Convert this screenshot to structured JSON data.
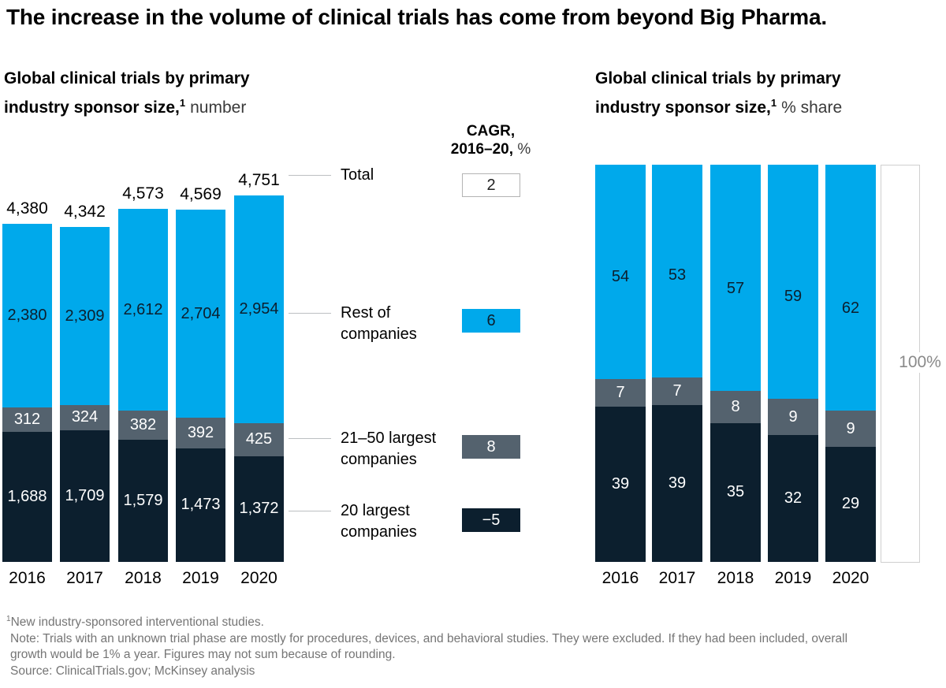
{
  "title": "The increase in the volume of clinical trials has come from beyond Big Pharma.",
  "left_chart": {
    "heading_bold_line1": "Global clinical trials by primary",
    "heading_bold_line2": "industry sponsor size,",
    "heading_sup": "1",
    "heading_unit": "number"
  },
  "right_chart": {
    "heading_bold_line1": "Global clinical trials by primary",
    "heading_bold_line2": "industry sponsor size,",
    "heading_sup": "1",
    "heading_unit": "% share",
    "axis_max_label": "100%"
  },
  "cagr": {
    "header_line1": "CAGR,",
    "header_line2_bold": "2016–20,",
    "header_line2_unit": "%",
    "rows": [
      {
        "id": "total",
        "label_line1": "Total",
        "label_line2": "",
        "value": "2",
        "box_style": "outline"
      },
      {
        "id": "rest-of-companies",
        "label_line1": "Rest of",
        "label_line2": "companies",
        "value": "6",
        "box_style": "blue"
      },
      {
        "id": "21-50-largest-companies",
        "label_line1": "21–50 largest",
        "label_line2": "companies",
        "value": "8",
        "box_style": "gray"
      },
      {
        "id": "20-largest-companies",
        "label_line1": "20 largest",
        "label_line2": "companies",
        "value": "−5",
        "box_style": "navy"
      }
    ]
  },
  "chart_data": [
    {
      "type": "bar",
      "stacked": true,
      "title": "Global clinical trials by primary industry sponsor size, number",
      "categories": [
        "2016",
        "2017",
        "2018",
        "2019",
        "2020"
      ],
      "series": [
        {
          "name": "Rest of companies",
          "color": "blue",
          "values": [
            2380,
            2309,
            2612,
            2704,
            2954
          ],
          "labels": [
            "2,380",
            "2,309",
            "2,612",
            "2,704",
            "2,954"
          ]
        },
        {
          "name": "21–50 largest companies",
          "color": "gray",
          "values": [
            312,
            324,
            382,
            392,
            425
          ],
          "labels": [
            "312",
            "324",
            "382",
            "392",
            "425"
          ]
        },
        {
          "name": "20 largest companies",
          "color": "navy",
          "values": [
            1688,
            1709,
            1579,
            1473,
            1372
          ],
          "labels": [
            "1,688",
            "1,709",
            "1,579",
            "1,473",
            "1,372"
          ]
        }
      ],
      "totals": [
        4380,
        4342,
        4573,
        4569,
        4751
      ],
      "total_labels": [
        "4,380",
        "4,342",
        "4,573",
        "4,569",
        "4,751"
      ],
      "cagr_2016_20_pct": {
        "Total": 2,
        "Rest of companies": 6,
        "21–50 largest companies": 8,
        "20 largest companies": -5
      }
    },
    {
      "type": "bar",
      "stacked": true,
      "percent": true,
      "title": "Global clinical trials by primary industry sponsor size, % share",
      "categories": [
        "2016",
        "2017",
        "2018",
        "2019",
        "2020"
      ],
      "series": [
        {
          "name": "Rest of companies",
          "color": "blue",
          "values": [
            54,
            53,
            57,
            59,
            62
          ]
        },
        {
          "name": "21–50 largest companies",
          "color": "gray",
          "values": [
            7,
            7,
            8,
            9,
            9
          ]
        },
        {
          "name": "20 largest companies",
          "color": "navy",
          "values": [
            39,
            39,
            35,
            32,
            29
          ]
        }
      ],
      "ylim": [
        0,
        100
      ],
      "axis_label": "100%"
    }
  ],
  "colors": {
    "blue": "#00a9eb",
    "gray": "#54626e",
    "navy": "#0c1f2e"
  },
  "footnotes": {
    "fn1_sup": "1",
    "fn1": "New industry-sponsored interventional studies.",
    "note_line1": "Note: Trials with an unknown trial phase are mostly for procedures, devices, and behavioral studies. They were excluded. If they had been included, overall",
    "note_line2": "growth would be 1% a year. Figures may not sum because of rounding.",
    "source": "Source: ClinicalTrials.gov; McKinsey analysis"
  }
}
